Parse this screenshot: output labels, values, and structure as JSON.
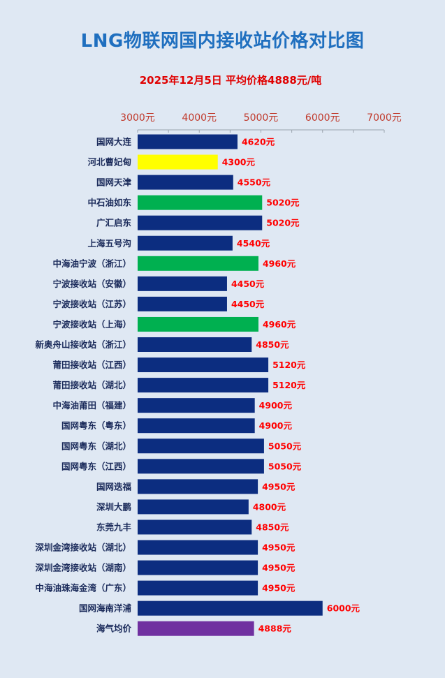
{
  "title": "LNG物联网国内接收站价格对比图",
  "subtitle": "2025年12月5日 平均价格4888元/吨",
  "colors": {
    "navy": "#0c2d80",
    "yellow": "#ffff00",
    "green": "#00b050",
    "purple": "#7030a0",
    "label_red": "#ff0000",
    "tick_red": "#c0392b",
    "category_text": "#1a2a5a"
  },
  "chart_data": {
    "type": "bar",
    "orientation": "horizontal",
    "xlim": [
      3000,
      7000
    ],
    "xticks": [
      3000,
      4000,
      5000,
      6000,
      7000
    ],
    "xtick_labels": [
      "3000元",
      "4000元",
      "5000元",
      "6000元",
      "7000元"
    ],
    "value_suffix": "元",
    "grid": false,
    "categories": [
      "国网大连",
      "河北曹妃甸",
      "国网天津",
      "中石油如东",
      "广汇启东",
      "上海五号沟",
      "中海油宁波（浙江）",
      "宁波接收站（安徽）",
      "宁波接收站（江苏）",
      "宁波接收站（上海）",
      "新奥舟山接收站（浙江）",
      "莆田接收站（江西）",
      "莆田接收站（湖北）",
      "中海油莆田（福建）",
      "国网粤东（粤东）",
      "国网粤东（湖北）",
      "国网粤东（江西）",
      "国网迭福",
      "深圳大鹏",
      "东莞九丰",
      "深圳金湾接收站（湖北）",
      "深圳金湾接收站（湖南）",
      "中海油珠海金湾（广东）",
      "国网海南洋浦",
      "海气均价"
    ],
    "values": [
      4620,
      4300,
      4550,
      5020,
      5020,
      4540,
      4960,
      4450,
      4450,
      4960,
      4850,
      5120,
      5120,
      4900,
      4900,
      5050,
      5050,
      4950,
      4800,
      4850,
      4950,
      4950,
      4950,
      6000,
      4888
    ],
    "value_labels": [
      "4620元",
      "4300元",
      "4550元",
      "5020元",
      "5020元",
      "4540元",
      "4960元",
      "4450元",
      "4450元",
      "4960元",
      "4850元",
      "5120元",
      "5120元",
      "4900元",
      "4900元",
      "5050元",
      "5050元",
      "4950元",
      "4800元",
      "4850元",
      "4950元",
      "4950元",
      "4950元",
      "6000元",
      "4888元"
    ],
    "bar_colors": [
      "navy",
      "yellow",
      "navy",
      "green",
      "navy",
      "navy",
      "green",
      "navy",
      "navy",
      "green",
      "navy",
      "navy",
      "navy",
      "navy",
      "navy",
      "navy",
      "navy",
      "navy",
      "navy",
      "navy",
      "navy",
      "navy",
      "navy",
      "navy",
      "purple"
    ]
  }
}
